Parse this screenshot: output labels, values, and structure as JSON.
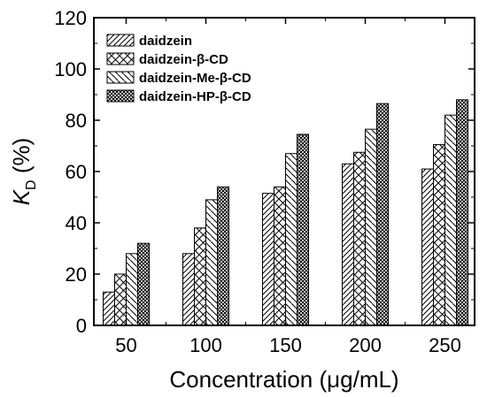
{
  "chart_data": {
    "type": "bar",
    "categories": [
      "50",
      "100",
      "150",
      "200",
      "250"
    ],
    "series": [
      {
        "name": "daidzein",
        "pattern": "diagonal",
        "values": [
          13,
          28,
          51.5,
          63,
          61
        ]
      },
      {
        "name": "daidzein-β-CD",
        "pattern": "crosshatch",
        "values": [
          20,
          38,
          54,
          67.5,
          70.5
        ]
      },
      {
        "name": "daidzein-Me-β-CD",
        "pattern": "backdiagonal",
        "values": [
          28,
          49,
          67,
          76.5,
          82
        ]
      },
      {
        "name": "daidzein-HP-β-CD",
        "pattern": "dense-cross",
        "values": [
          32,
          54,
          74.5,
          86.5,
          88
        ]
      }
    ],
    "xlabel": "Concentration (μg/mL)",
    "ylabel_main": "K",
    "ylabel_sub": "D",
    "ylabel_rest": " (%)",
    "ylim": [
      0,
      120
    ],
    "yticks": [
      "0",
      "20",
      "40",
      "60",
      "80",
      "100",
      "120"
    ],
    "legend_position": "top-left",
    "grid": false
  }
}
